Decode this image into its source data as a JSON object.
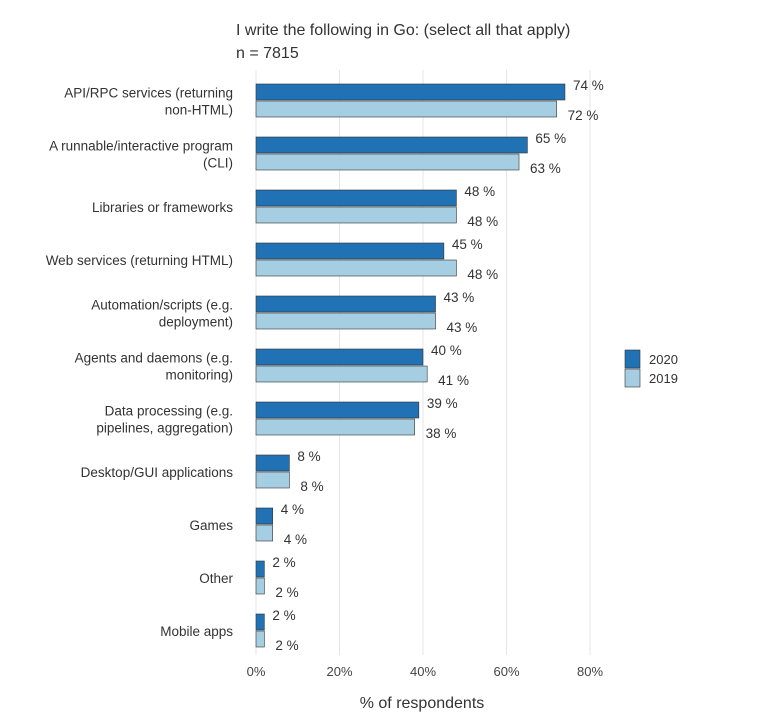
{
  "chart_data": {
    "type": "bar",
    "orientation": "horizontal",
    "title": "I write the following in Go: (select all that apply)",
    "subtitle": "n = 7815",
    "xlabel": "% of respondents",
    "ylabel": "",
    "xlim": [
      0,
      80
    ],
    "xticks": [
      "0%",
      "20%",
      "40%",
      "60%",
      "80%"
    ],
    "grid": "vertical",
    "legend_position": "right",
    "categories": [
      [
        "API/RPC services (returning",
        "non-HTML)"
      ],
      [
        "A runnable/interactive program",
        "(CLI)"
      ],
      [
        "Libraries or frameworks"
      ],
      [
        "Web services (returning HTML)"
      ],
      [
        "Automation/scripts (e.g.",
        "deployment)"
      ],
      [
        "Agents and daemons (e.g.",
        "monitoring)"
      ],
      [
        "Data processing (e.g.",
        "pipelines, aggregation)"
      ],
      [
        "Desktop/GUI applications"
      ],
      [
        "Games"
      ],
      [
        "Other"
      ],
      [
        "Mobile apps"
      ]
    ],
    "series": [
      {
        "name": "2020",
        "color": "#2171b5",
        "values": [
          74,
          65,
          48,
          45,
          43,
          40,
          39,
          8,
          4,
          2,
          2
        ],
        "labels": [
          "74 %",
          "65 %",
          "48 %",
          "45 %",
          "43 %",
          "40 %",
          "39 %",
          "8 %",
          "4 %",
          "2 %",
          "2 %"
        ]
      },
      {
        "name": "2019",
        "color": "#a6cee3",
        "values": [
          72,
          63,
          48,
          48,
          43,
          41,
          38,
          8,
          4,
          2,
          2
        ],
        "labels": [
          "72 %",
          "63 %",
          "48 %",
          "48 %",
          "43 %",
          "41 %",
          "38 %",
          "8 %",
          "4 %",
          "2 %",
          "2 %"
        ]
      }
    ]
  }
}
